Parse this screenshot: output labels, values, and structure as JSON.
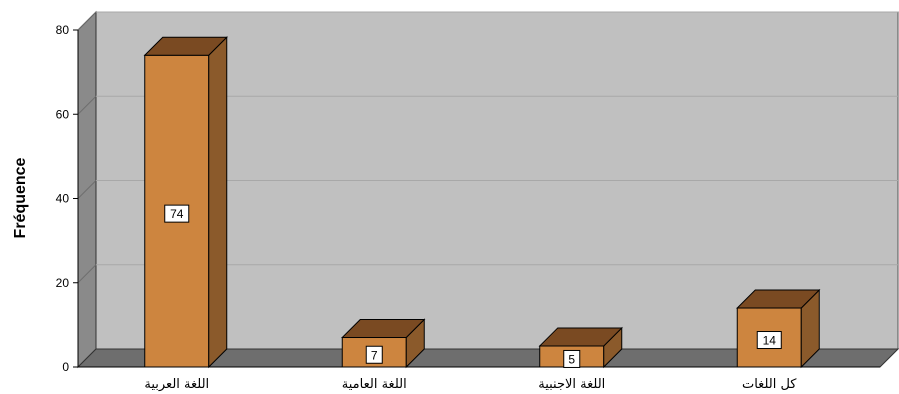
{
  "chart_data": {
    "type": "bar",
    "categories": [
      "اللغة العربية",
      "اللغة العامية",
      "اللغة الاجنبية",
      "كل اللغات"
    ],
    "values": [
      74,
      7,
      5,
      14
    ],
    "data_labels": [
      "74",
      "7",
      "5",
      "14"
    ],
    "ylabel": "Fréquence",
    "xlabel": "",
    "ylim": [
      0,
      80
    ],
    "yticks": [
      0,
      20,
      40,
      60,
      80
    ],
    "grid": true,
    "style": "3d",
    "colors": {
      "bar_front": "#cd853f",
      "bar_side": "#8b5a2b",
      "bar_top": "#7a4a22",
      "plot_back": "#c0c0c0",
      "plot_side": "#8a8a8a",
      "plot_floor": "#6e6e6e"
    }
  }
}
